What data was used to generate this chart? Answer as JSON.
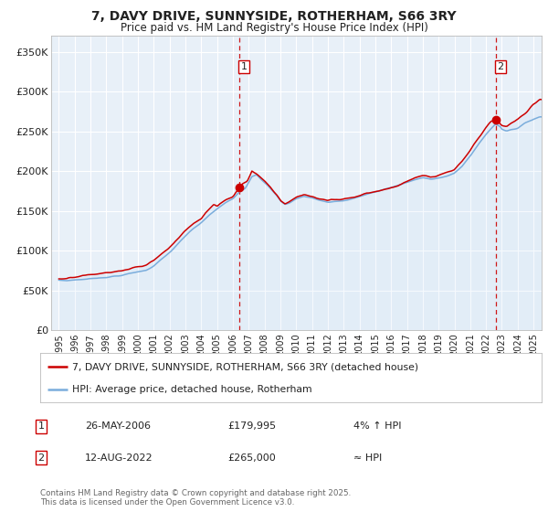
{
  "title": "7, DAVY DRIVE, SUNNYSIDE, ROTHERHAM, S66 3RY",
  "subtitle": "Price paid vs. HM Land Registry's House Price Index (HPI)",
  "legend_line1": "7, DAVY DRIVE, SUNNYSIDE, ROTHERHAM, S66 3RY (detached house)",
  "legend_line2": "HPI: Average price, detached house, Rotherham",
  "annotation1_date": "26-MAY-2006",
  "annotation1_price": "£179,995",
  "annotation1_note": "4% ↑ HPI",
  "annotation2_date": "12-AUG-2022",
  "annotation2_price": "£265,000",
  "annotation2_note": "≈ HPI",
  "vline1_x": 2006.4,
  "vline2_x": 2022.6,
  "marker1_x": 2006.4,
  "marker1_y": 179995,
  "marker2_x": 2022.6,
  "marker2_y": 265000,
  "ylim": [
    0,
    370000
  ],
  "xlim": [
    1994.5,
    2025.5
  ],
  "yticks": [
    0,
    50000,
    100000,
    150000,
    200000,
    250000,
    300000,
    350000
  ],
  "ytick_labels": [
    "£0",
    "£50K",
    "£100K",
    "£150K",
    "£200K",
    "£250K",
    "£300K",
    "£350K"
  ],
  "xticks": [
    1995,
    1996,
    1997,
    1998,
    1999,
    2000,
    2001,
    2002,
    2003,
    2004,
    2005,
    2006,
    2007,
    2008,
    2009,
    2010,
    2011,
    2012,
    2013,
    2014,
    2015,
    2016,
    2017,
    2018,
    2019,
    2020,
    2021,
    2022,
    2023,
    2024,
    2025
  ],
  "line_red_color": "#cc0000",
  "line_blue_color": "#7aaddc",
  "fill_color": "#cce0f5",
  "background_color": "#e8f0f8",
  "grid_color": "#ffffff",
  "footer_text": "Contains HM Land Registry data © Crown copyright and database right 2025.\nThis data is licensed under the Open Government Licence v3.0.",
  "font_color": "#222222"
}
